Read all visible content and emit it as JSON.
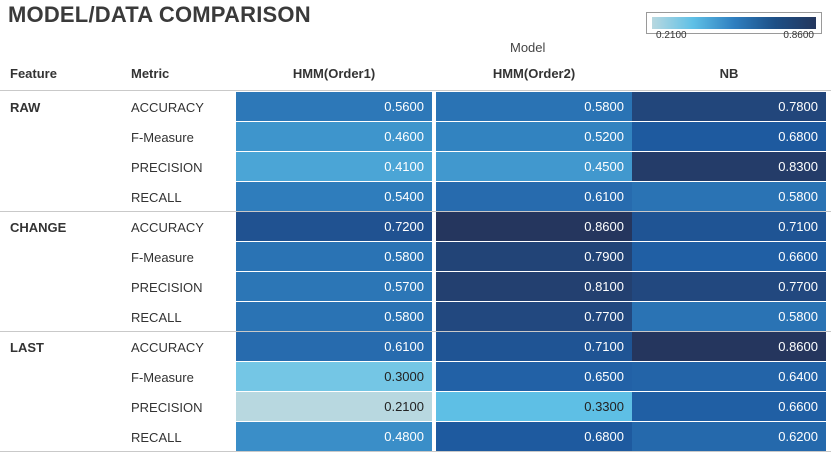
{
  "title": "MODEL/DATA COMPARISON",
  "legend": {
    "min_label": "0.2100",
    "max_label": "0.8600"
  },
  "model_label": "Model",
  "headers": {
    "feature": "Feature",
    "metric": "Metric"
  },
  "chart_data": {
    "type": "heatmap",
    "title": "MODEL/DATA COMPARISON",
    "column_title": "Model",
    "columns": [
      "HMM(Order1)",
      "HMM(Order2)",
      "NB"
    ],
    "color_range": [
      0.21,
      0.86
    ],
    "groups": [
      {
        "feature": "RAW",
        "rows": [
          {
            "metric": "ACCURACY",
            "values": [
              0.56,
              0.58,
              0.78
            ]
          },
          {
            "metric": "F-Measure",
            "values": [
              0.46,
              0.52,
              0.68
            ]
          },
          {
            "metric": "PRECISION",
            "values": [
              0.41,
              0.45,
              0.83
            ]
          },
          {
            "metric": "RECALL",
            "values": [
              0.54,
              0.61,
              0.58
            ]
          }
        ]
      },
      {
        "feature": "CHANGE",
        "rows": [
          {
            "metric": "ACCURACY",
            "values": [
              0.72,
              0.86,
              0.71
            ]
          },
          {
            "metric": "F-Measure",
            "values": [
              0.58,
              0.79,
              0.66
            ]
          },
          {
            "metric": "PRECISION",
            "values": [
              0.57,
              0.81,
              0.77
            ]
          },
          {
            "metric": "RECALL",
            "values": [
              0.58,
              0.77,
              0.58
            ]
          }
        ]
      },
      {
        "feature": "LAST",
        "rows": [
          {
            "metric": "ACCURACY",
            "values": [
              0.61,
              0.71,
              0.86
            ]
          },
          {
            "metric": "F-Measure",
            "values": [
              0.3,
              0.65,
              0.64
            ]
          },
          {
            "metric": "PRECISION",
            "values": [
              0.21,
              0.33,
              0.66
            ]
          },
          {
            "metric": "RECALL",
            "values": [
              0.48,
              0.68,
              0.62
            ]
          }
        ]
      }
    ]
  }
}
